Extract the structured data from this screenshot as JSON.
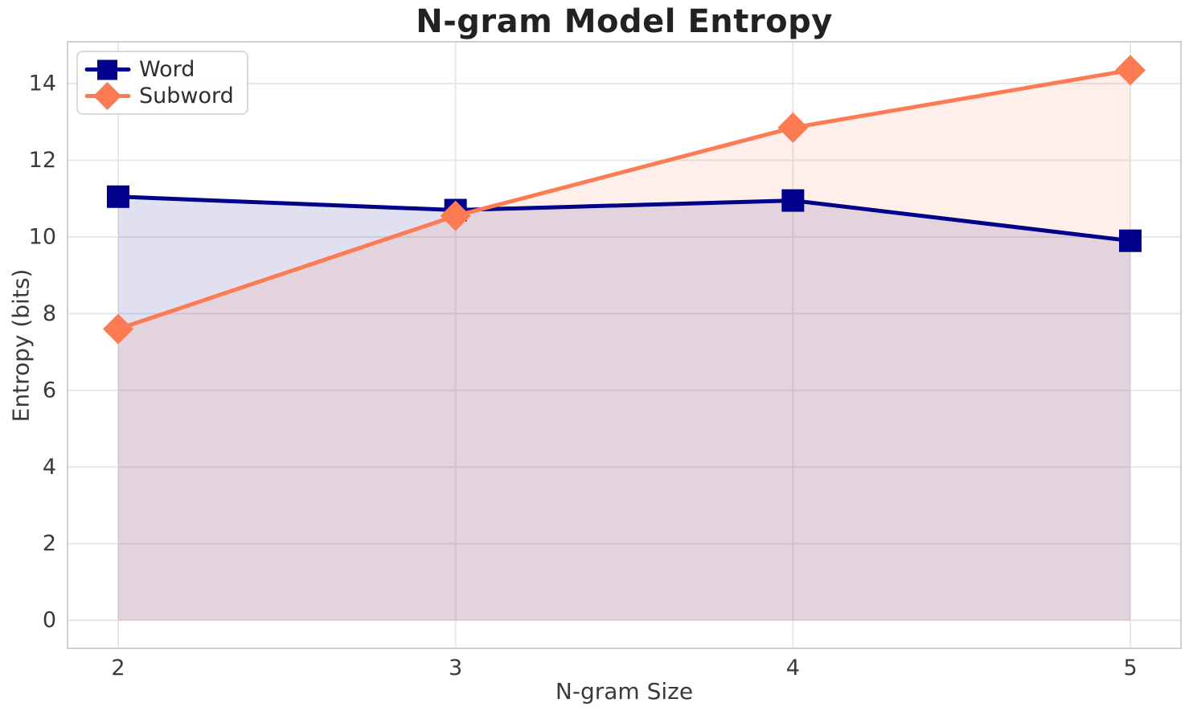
{
  "chart_data": {
    "type": "line",
    "title": "N-gram Model Entropy",
    "xlabel": "N-gram Size",
    "ylabel": "Entropy (bits)",
    "x": [
      2,
      3,
      4,
      5
    ],
    "series": [
      {
        "name": "Word",
        "color": "#00008B",
        "marker": "square",
        "values": [
          11.05,
          10.7,
          10.95,
          9.9
        ],
        "fill_to_zero": true,
        "fill_alpha": 0.12
      },
      {
        "name": "Subword",
        "color": "#FC7B52",
        "marker": "diamond",
        "values": [
          7.6,
          10.55,
          12.85,
          14.35
        ],
        "fill_to_zero": true,
        "fill_alpha": 0.12
      }
    ],
    "xticks": [
      2,
      3,
      4,
      5
    ],
    "yticks": [
      0,
      2,
      4,
      6,
      8,
      10,
      12,
      14
    ],
    "xlim": [
      1.85,
      5.15
    ],
    "ylim": [
      -0.73,
      15.09
    ],
    "grid": true,
    "legend_position": "upper left",
    "style": {
      "grid_color": "#e7e7e7",
      "spine_color": "#cfcfcf",
      "tick_color": "#3a3a3a",
      "title_color": "#222222"
    }
  }
}
